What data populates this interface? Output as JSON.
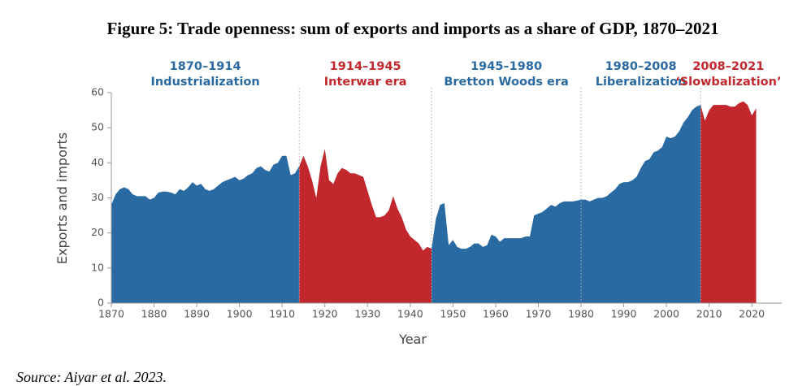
{
  "chart_data": {
    "type": "area",
    "title": "Figure 5: Trade openness: sum of exports and imports as a share of GDP, 1870–2021",
    "source": "Source: Aiyar et al. 2023.",
    "x_label": "Year",
    "y_label": "Exports and imports",
    "x": [
      1870,
      1871,
      1872,
      1873,
      1874,
      1875,
      1876,
      1877,
      1878,
      1879,
      1880,
      1881,
      1882,
      1883,
      1884,
      1885,
      1886,
      1887,
      1888,
      1889,
      1890,
      1891,
      1892,
      1893,
      1894,
      1895,
      1896,
      1897,
      1898,
      1899,
      1900,
      1901,
      1902,
      1903,
      1904,
      1905,
      1906,
      1907,
      1908,
      1909,
      1910,
      1911,
      1912,
      1913,
      1914,
      1915,
      1916,
      1917,
      1918,
      1919,
      1920,
      1921,
      1922,
      1923,
      1924,
      1925,
      1926,
      1927,
      1928,
      1929,
      1930,
      1931,
      1932,
      1933,
      1934,
      1935,
      1936,
      1937,
      1938,
      1939,
      1940,
      1941,
      1942,
      1943,
      1944,
      1945,
      1946,
      1947,
      1948,
      1949,
      1950,
      1951,
      1952,
      1953,
      1954,
      1955,
      1956,
      1957,
      1958,
      1959,
      1960,
      1961,
      1962,
      1963,
      1964,
      1965,
      1966,
      1967,
      1968,
      1969,
      1970,
      1971,
      1972,
      1973,
      1974,
      1975,
      1976,
      1977,
      1978,
      1979,
      1980,
      1981,
      1982,
      1983,
      1984,
      1985,
      1986,
      1987,
      1988,
      1989,
      1990,
      1991,
      1992,
      1993,
      1994,
      1995,
      1996,
      1997,
      1998,
      1999,
      2000,
      2001,
      2002,
      2003,
      2004,
      2005,
      2006,
      2007,
      2008,
      2009,
      2010,
      2011,
      2012,
      2013,
      2014,
      2015,
      2016,
      2017,
      2018,
      2019,
      2020,
      2021
    ],
    "values": [
      28,
      31,
      32.5,
      33,
      32.5,
      31,
      30.5,
      30.5,
      30.5,
      29.5,
      30,
      31.5,
      31.8,
      31.8,
      31.5,
      31,
      32.5,
      32,
      33,
      34.5,
      33.5,
      34,
      32.5,
      32,
      32.5,
      33.5,
      34.5,
      35,
      35.5,
      36,
      35,
      35.5,
      36.5,
      37,
      38.5,
      39,
      38,
      37.5,
      39.5,
      40,
      42,
      42,
      36.5,
      37,
      39,
      42,
      39,
      35,
      30,
      39,
      44,
      35,
      34,
      37,
      38.5,
      38,
      37,
      37,
      36.5,
      36,
      32,
      28,
      24.5,
      24.5,
      25,
      26.5,
      30.5,
      27,
      24.5,
      21,
      19,
      18,
      17,
      15,
      16,
      15.5,
      24,
      28,
      28.5,
      16.5,
      18,
      16,
      15.5,
      15.5,
      16,
      17,
      17,
      16,
      16.5,
      19.5,
      19,
      17.5,
      18.5,
      18.5,
      18.5,
      18.5,
      18.5,
      19,
      19,
      25,
      25.5,
      26,
      27,
      28,
      27.5,
      28.5,
      29,
      29,
      29,
      29.2,
      29.5,
      29.5,
      29,
      29.5,
      30,
      30,
      30.5,
      31.5,
      32.5,
      34,
      34.5,
      34.5,
      35,
      36,
      38.5,
      40.5,
      41,
      43,
      43.5,
      44.5,
      47.5,
      47,
      47.5,
      49,
      51.5,
      53,
      55,
      56,
      56.5,
      52,
      55,
      56.5,
      56.5,
      56.5,
      56.5,
      56,
      56,
      57,
      57.5,
      56.5,
      53.5,
      55.5
    ],
    "eras": [
      {
        "period": "1870–1914",
        "name": "Industrialization",
        "start": 1870,
        "end": 1914,
        "color": "#2a6aa3"
      },
      {
        "period": "1914–1945",
        "name": "Interwar era",
        "start": 1914,
        "end": 1945,
        "color": "#c1272d"
      },
      {
        "period": "1945–1980",
        "name": "Bretton Woods era",
        "start": 1945,
        "end": 1980,
        "color": "#2a6aa3"
      },
      {
        "period": "1980–2008",
        "name": "Liberalization",
        "start": 1980,
        "end": 2008,
        "color": "#2a6aa3"
      },
      {
        "period": "2008–2021",
        "name": "‘Slowbalization’",
        "start": 2008,
        "end": 2021,
        "color": "#c1272d"
      }
    ],
    "xlim": [
      1870,
      2027
    ],
    "xticks": [
      1870,
      1880,
      1890,
      1900,
      1910,
      1920,
      1930,
      1940,
      1950,
      1960,
      1970,
      1980,
      1990,
      2000,
      2010,
      2020
    ],
    "ylim": [
      0,
      60
    ],
    "yticks": [
      0,
      10,
      20,
      30,
      40,
      50,
      60
    ],
    "grid": false
  }
}
